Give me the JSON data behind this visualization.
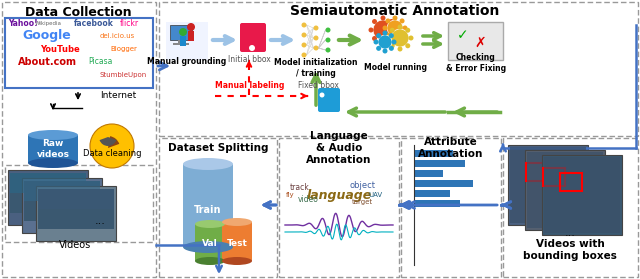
{
  "bg_color": "#ffffff",
  "sec1_title": "Data Collection",
  "sec2_title": "Semiautomatic Annotation",
  "sec3_title": "Dataset Splitting",
  "sec4_title": "Language\n& Audio\nAnnotation",
  "sec5_title": "Attribute\nAnnotation",
  "sec6_title": "Videos with\nbounding boxes",
  "arrow_blue": "#4472c4",
  "arrow_blue_light": "#9dc3e6",
  "arrow_green": "#70ad47",
  "arrow_red": "#ff0000",
  "raw_video_color": "#2e75b6",
  "raw_video_light": "#5b9bd5",
  "raw_video_dark": "#1f5496",
  "cleaning_color": "#ffc000",
  "cleaning_dark": "#c07800",
  "train_color": "#7eadd4",
  "train_light": "#aac8e8",
  "train_dark": "#4a80b0",
  "val_color": "#70ad47",
  "val_light": "#98ca6f",
  "val_dark": "#4a8030",
  "test_color": "#ed7d31",
  "test_light": "#f0a870",
  "test_dark": "#b04820",
  "bar_color": "#2e75b6",
  "border_color": "#999999",
  "blue_border": "#4472c4",
  "check_green": "#00aa00",
  "cross_red": "#dd0000",
  "check_box": "#e8e8e8",
  "logo_box": "#ffffff",
  "manual_grounding_bg": "#f0f4ff",
  "tag_pink": "#e8194a",
  "tag_blue": "#1e9cd7",
  "word_cloud_color": "#8b6914",
  "waveform_purple": "#7030a0",
  "waveform_teal": "#00b0c0",
  "video_frame1": "#4a6fa8",
  "video_frame2": "#3a5f98",
  "video_frame3": "#2a4f88"
}
